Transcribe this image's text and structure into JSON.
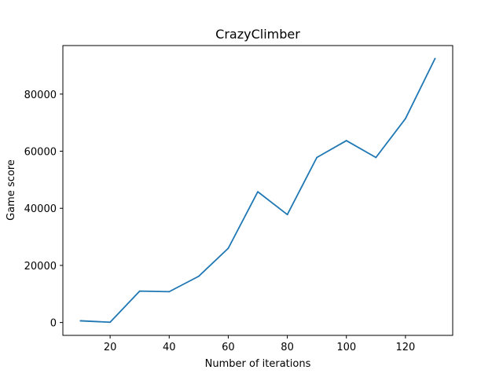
{
  "chart_data": {
    "type": "line",
    "title": "CrazyClimber",
    "xlabel": "Number of iterations",
    "ylabel": "Game score",
    "xlim": [
      4,
      136
    ],
    "ylim": [
      -4500,
      97000
    ],
    "xticks": [
      20,
      40,
      60,
      80,
      100,
      120
    ],
    "yticks": [
      0,
      20000,
      40000,
      60000,
      80000
    ],
    "grid": false,
    "series": [
      {
        "color": "#1f77b4",
        "x": [
          10,
          20,
          30,
          40,
          50,
          60,
          70,
          80,
          90,
          100,
          110,
          120,
          130
        ],
        "y": [
          600,
          100,
          11000,
          10800,
          16200,
          26000,
          45800,
          37800,
          57800,
          63700,
          57800,
          71400,
          92400
        ]
      }
    ]
  }
}
